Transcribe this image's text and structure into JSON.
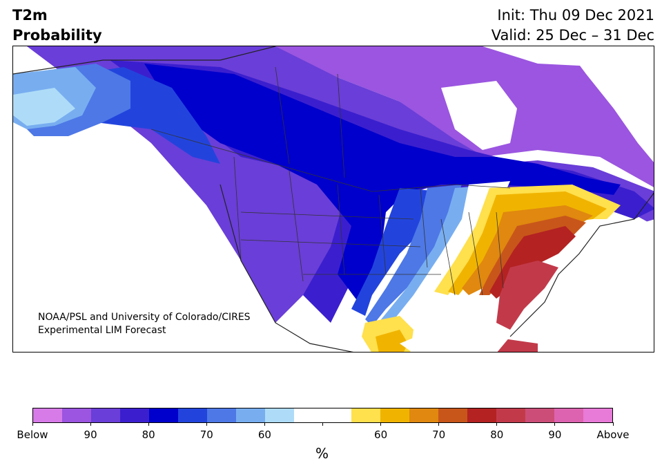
{
  "header": {
    "title_line1": "T2m",
    "title_line2": "Probability",
    "init": "Init: Thu 09 Dec 2021",
    "valid": "Valid: 25 Dec – 31 Dec"
  },
  "credit": {
    "line1": "NOAA/PSL and University of Colorado/CIRES",
    "line2": "Experimental LIM Forecast"
  },
  "colorbar": {
    "colors": [
      "#d77be8",
      "#9b55e0",
      "#6a3ed8",
      "#3b1fce",
      "#0000cc",
      "#2244dd",
      "#4d78e6",
      "#78aef0",
      "#aedcf8",
      "#ffffff",
      "#ffffff",
      "#ffe04d",
      "#f0b400",
      "#e0880f",
      "#c8561a",
      "#b42222",
      "#c23a4a",
      "#cc4e78",
      "#dd63b0",
      "#e87ad8"
    ],
    "tick_labels": [
      "Below",
      "90",
      "80",
      "70",
      "60",
      "",
      "60",
      "70",
      "80",
      "90",
      "Above"
    ],
    "unit": "%"
  },
  "map": {
    "region": "North America",
    "land_color": "#ffffff",
    "border_color": "#333333"
  }
}
